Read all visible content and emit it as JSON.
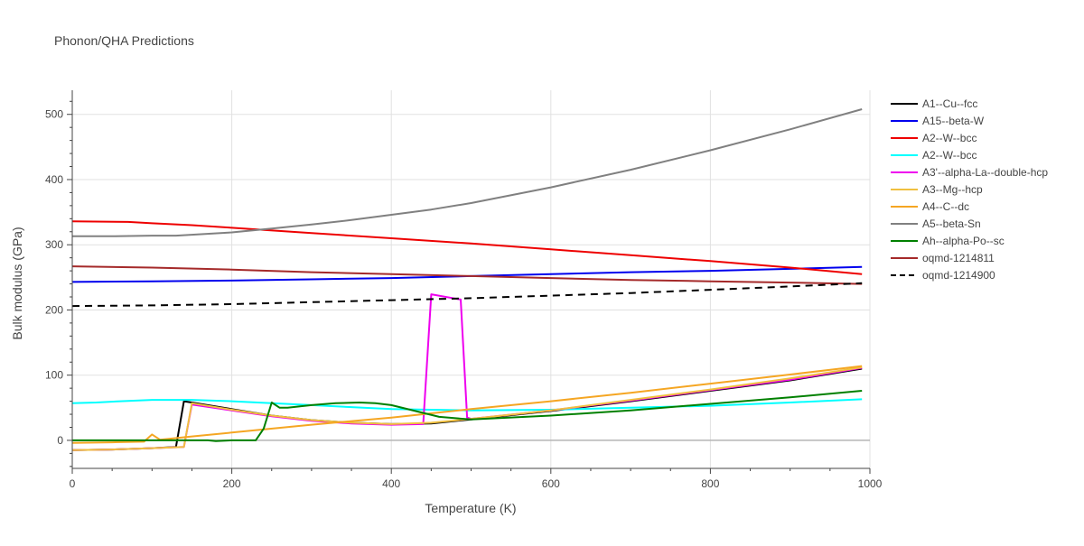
{
  "chart_data": {
    "type": "line",
    "title": "Phonon/QHA Predictions",
    "xlabel": "Temperature (K)",
    "ylabel": "Bulk modulus (GPa)",
    "xlim": [
      0,
      1000
    ],
    "ylim": [
      -43,
      537
    ],
    "x_ticks": [
      0,
      200,
      400,
      600,
      800,
      1000
    ],
    "y_ticks": [
      0,
      100,
      200,
      300,
      400,
      500
    ],
    "grid": true,
    "legend_position": "right",
    "series": [
      {
        "name": "A1--Cu--fcc",
        "color": "#000000",
        "dash": "solid",
        "x": [
          0,
          50,
          100,
          130,
          140,
          150,
          200,
          250,
          300,
          350,
          400,
          450,
          500,
          600,
          700,
          800,
          900,
          990
        ],
        "y": [
          -15,
          -14,
          -12,
          -10,
          60,
          58,
          48,
          38,
          31,
          27,
          25,
          26,
          32,
          45,
          60,
          76,
          92,
          110
        ]
      },
      {
        "name": "A15--beta-W",
        "color": "#0000ee",
        "dash": "solid",
        "x": [
          0,
          100,
          200,
          300,
          400,
          500,
          600,
          700,
          800,
          900,
          990
        ],
        "y": [
          243,
          244,
          245,
          247,
          249,
          252,
          255,
          258,
          260,
          263,
          266
        ]
      },
      {
        "name": "A2--W--bcc",
        "color": "#ee0000",
        "dash": "solid",
        "x": [
          0,
          70,
          100,
          150,
          200,
          300,
          400,
          500,
          600,
          700,
          800,
          900,
          990
        ],
        "y": [
          336,
          335,
          333,
          330,
          326,
          318,
          310,
          302,
          293,
          284,
          275,
          265,
          255
        ]
      },
      {
        "name": "A2--W--bcc",
        "color": "#00ffff",
        "dash": "solid",
        "x": [
          0,
          30,
          60,
          100,
          150,
          200,
          250,
          300,
          350,
          400,
          450,
          500,
          600,
          700,
          800,
          900,
          990
        ],
        "y": [
          57,
          58,
          60,
          62,
          62,
          60,
          57,
          54,
          51,
          48,
          47,
          46,
          47,
          50,
          53,
          58,
          63
        ]
      },
      {
        "name": "A3'--alpha-La--double-hcp",
        "color": "#ee00ee",
        "dash": "solid",
        "x": [
          0,
          50,
          100,
          140,
          150,
          200,
          250,
          300,
          350,
          400,
          440,
          450,
          487,
          495,
          500,
          600,
          700,
          800,
          900,
          990
        ],
        "y": [
          -15,
          -14,
          -12,
          -10,
          55,
          46,
          37,
          30,
          26,
          24,
          25,
          224,
          216,
          35,
          33,
          46,
          61,
          77,
          93,
          111
        ]
      },
      {
        "name": "A3--Mg--hcp",
        "color": "#f0c040",
        "dash": "solid",
        "x": [
          0,
          50,
          100,
          140,
          150,
          200,
          250,
          300,
          350,
          400,
          450,
          500,
          600,
          700,
          800,
          900,
          990
        ],
        "y": [
          -15,
          -14,
          -12,
          -10,
          57,
          47,
          38,
          31,
          27,
          25,
          27,
          33,
          46,
          62,
          78,
          95,
          112
        ]
      },
      {
        "name": "A4--C--dc",
        "color": "#f5a623",
        "dash": "solid",
        "x": [
          0,
          50,
          90,
          100,
          110,
          150,
          200,
          300,
          400,
          500,
          600,
          700,
          800,
          900,
          990
        ],
        "y": [
          -4,
          -3,
          -2,
          9,
          1,
          6,
          12,
          24,
          35,
          48,
          60,
          73,
          87,
          101,
          114
        ]
      },
      {
        "name": "A5--beta-Sn",
        "color": "#808080",
        "dash": "solid",
        "x": [
          0,
          50,
          100,
          130,
          200,
          250,
          300,
          350,
          400,
          450,
          500,
          600,
          700,
          800,
          900,
          990
        ],
        "y": [
          313,
          313,
          314,
          314,
          319,
          325,
          331,
          338,
          346,
          354,
          364,
          388,
          415,
          445,
          477,
          508
        ]
      },
      {
        "name": "Ah--alpha-Po--sc",
        "color": "#008000",
        "dash": "solid",
        "x": [
          0,
          50,
          100,
          170,
          180,
          200,
          230,
          240,
          250,
          260,
          270,
          300,
          330,
          360,
          380,
          400,
          430,
          460,
          500,
          600,
          700,
          800,
          900,
          990
        ],
        "y": [
          0,
          0,
          0,
          0,
          -1,
          0,
          0,
          18,
          58,
          50,
          50,
          54,
          57,
          58,
          57,
          54,
          45,
          36,
          32,
          38,
          46,
          56,
          66,
          76
        ]
      },
      {
        "name": "oqmd-1214811",
        "color": "#a52a2a",
        "dash": "solid",
        "x": [
          0,
          100,
          200,
          300,
          400,
          500,
          600,
          700,
          800,
          900,
          990
        ],
        "y": [
          267,
          265,
          262,
          258,
          255,
          252,
          249,
          246,
          244,
          242,
          240
        ]
      },
      {
        "name": "oqmd-1214900",
        "color": "#000000",
        "dash": "dash",
        "x": [
          0,
          100,
          200,
          300,
          400,
          500,
          600,
          700,
          800,
          900,
          990
        ],
        "y": [
          206,
          207,
          209,
          212,
          215,
          218,
          222,
          226,
          231,
          236,
          241
        ]
      }
    ]
  }
}
